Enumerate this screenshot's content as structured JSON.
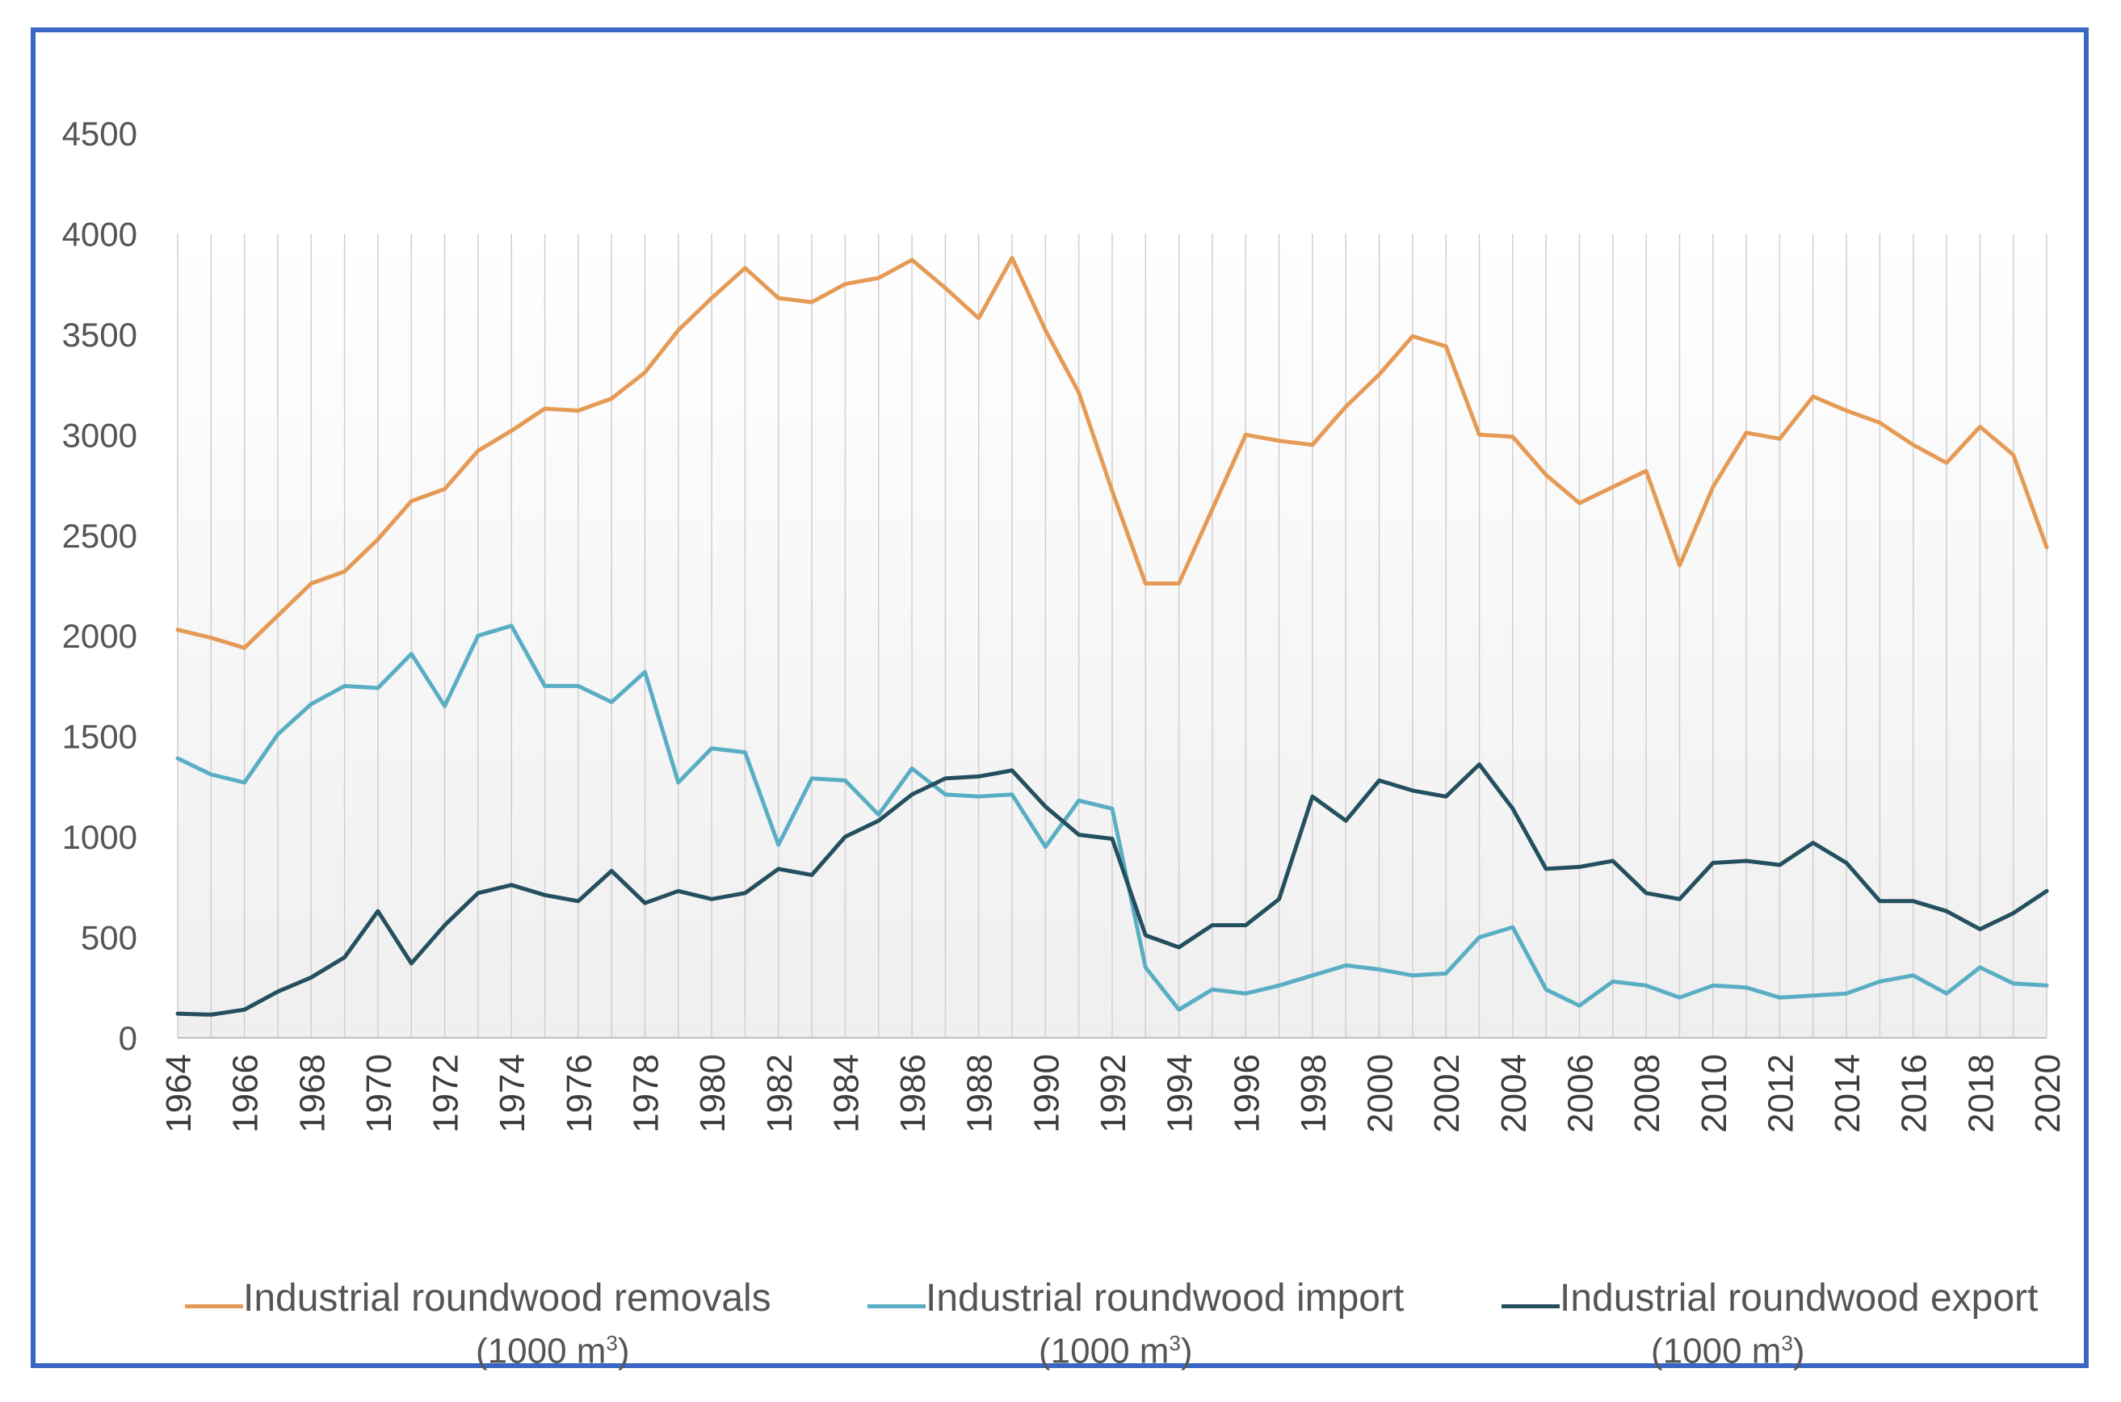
{
  "chart_data": {
    "type": "line",
    "title": "",
    "xlabel": "",
    "ylabel": "",
    "ylim": [
      0,
      4500
    ],
    "yticks": [
      0,
      500,
      1000,
      1500,
      2000,
      2500,
      3000,
      3500,
      4000,
      4500
    ],
    "xtick_labels": [
      "1964",
      "1966",
      "1968",
      "1970",
      "1972",
      "1974",
      "1976",
      "1978",
      "1980",
      "1982",
      "1984",
      "1986",
      "1988",
      "1990",
      "1992",
      "1994",
      "1996",
      "1998",
      "2000",
      "2002",
      "2004",
      "2006",
      "2008",
      "2010",
      "2012",
      "2014",
      "2016",
      "2018",
      "2020"
    ],
    "x": [
      1964,
      1965,
      1966,
      1967,
      1968,
      1969,
      1970,
      1971,
      1972,
      1973,
      1974,
      1975,
      1976,
      1977,
      1978,
      1979,
      1980,
      1981,
      1982,
      1983,
      1984,
      1985,
      1986,
      1987,
      1988,
      1989,
      1990,
      1991,
      1992,
      1993,
      1994,
      1995,
      1996,
      1997,
      1998,
      1999,
      2000,
      2001,
      2002,
      2003,
      2004,
      2005,
      2006,
      2007,
      2008,
      2009,
      2010,
      2011,
      2012,
      2013,
      2014,
      2015,
      2016,
      2017,
      2018,
      2019,
      2020
    ],
    "grid": "vertical",
    "legend_position": "bottom",
    "series": [
      {
        "name": "Industrial roundwood removals",
        "unit_prefix": "(1000 m",
        "unit_exp": "3",
        "unit_suffix": ")",
        "color": "#e59a55",
        "values": [
          2030,
          1990,
          1940,
          2100,
          2260,
          2320,
          2480,
          2670,
          2730,
          2920,
          3020,
          3130,
          3120,
          3180,
          3310,
          3520,
          3680,
          3830,
          3680,
          3660,
          3750,
          3780,
          3870,
          3730,
          3580,
          3880,
          3520,
          3210,
          2720,
          2260,
          2260,
          2630,
          3000,
          2970,
          2950,
          3140,
          3300,
          3490,
          3440,
          3000,
          2990,
          2800,
          2660,
          2740,
          2820,
          2350,
          2740,
          3010,
          2980,
          3190,
          3120,
          3060,
          2950,
          2860,
          3040,
          2900,
          2440
        ]
      },
      {
        "name": "Industrial roundwood import",
        "unit_prefix": "(1000 m",
        "unit_exp": "3",
        "unit_suffix": ")",
        "color": "#5aaec4",
        "values": [
          1390,
          1310,
          1270,
          1510,
          1660,
          1750,
          1740,
          1910,
          1650,
          2000,
          2050,
          1750,
          1750,
          1670,
          1820,
          1270,
          1440,
          1420,
          960,
          1290,
          1280,
          1110,
          1340,
          1210,
          1200,
          1210,
          950,
          1180,
          1140,
          350,
          140,
          240,
          220,
          260,
          310,
          360,
          340,
          310,
          320,
          500,
          550,
          240,
          160,
          280,
          260,
          200,
          260,
          250,
          200,
          210,
          220,
          280,
          310,
          220,
          350,
          270,
          260
        ]
      },
      {
        "name": "Industrial roundwood export",
        "unit_prefix": "(1000 m",
        "unit_exp": "3",
        "unit_suffix": ")",
        "color": "#234f5e",
        "values": [
          120,
          115,
          140,
          230,
          300,
          400,
          630,
          370,
          560,
          720,
          760,
          710,
          680,
          830,
          670,
          730,
          690,
          720,
          840,
          810,
          1000,
          1080,
          1210,
          1290,
          1300,
          1330,
          1150,
          1010,
          990,
          510,
          450,
          560,
          560,
          690,
          1200,
          1080,
          1280,
          1230,
          1200,
          1360,
          1140,
          840,
          850,
          880,
          720,
          690,
          870,
          880,
          860,
          970,
          870,
          680,
          680,
          630,
          540,
          620,
          730
        ]
      }
    ]
  }
}
